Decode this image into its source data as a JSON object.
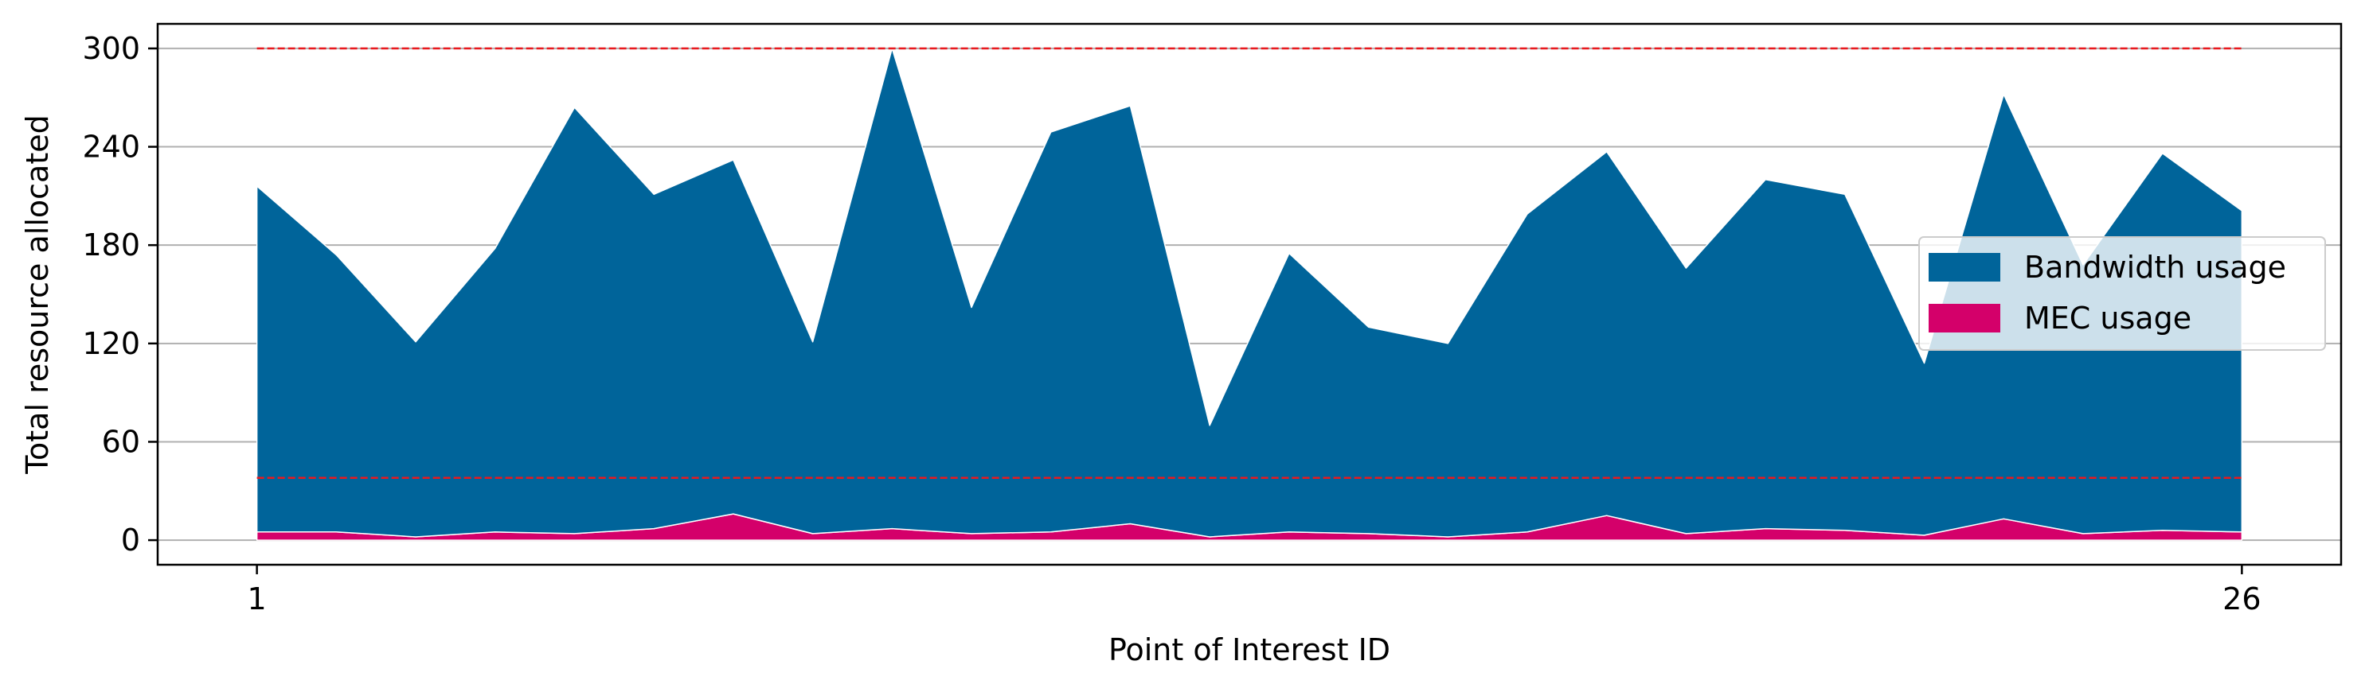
{
  "chart_data": {
    "type": "area",
    "stacked": true,
    "xlabel": "Point of Interest ID",
    "ylabel": "Total resource allocated",
    "x": [
      1,
      2,
      3,
      4,
      5,
      6,
      7,
      8,
      9,
      10,
      11,
      12,
      13,
      14,
      15,
      16,
      17,
      18,
      19,
      20,
      21,
      22,
      23,
      24,
      25,
      26
    ],
    "xticks": [
      "1",
      "26"
    ],
    "xtick_values": [
      1,
      26
    ],
    "xlim": [
      -0.25,
      27.25
    ],
    "yticks": [
      "0",
      "60",
      "120",
      "180",
      "240",
      "300"
    ],
    "ytick_values": [
      0,
      60,
      120,
      180,
      240,
      300
    ],
    "ylim": [
      -15,
      315
    ],
    "grid": "horizontal",
    "series": [
      {
        "name": "MEC usage",
        "color": "#d4006a",
        "values": [
          5,
          5,
          2,
          5,
          4,
          7,
          16,
          4,
          7,
          4,
          5,
          10,
          2,
          5,
          4,
          2,
          5,
          15,
          4,
          7,
          6,
          3,
          13,
          4,
          6,
          5
        ]
      },
      {
        "name": "Bandwidth usage",
        "color": "#00649a",
        "values": [
          211,
          169,
          119,
          173,
          260,
          204,
          216,
          117,
          293,
          138,
          244,
          255,
          68,
          170,
          126,
          118,
          194,
          222,
          162,
          213,
          205,
          105,
          259,
          164,
          230,
          196
        ]
      }
    ],
    "reference_lines": [
      {
        "y": 300,
        "color": "#e8191e",
        "style": "dashed"
      },
      {
        "y": 38,
        "color": "#e8191e",
        "style": "dashed"
      }
    ],
    "legend": {
      "placement": "center-right",
      "order": [
        "Bandwidth usage",
        "MEC usage"
      ]
    }
  }
}
